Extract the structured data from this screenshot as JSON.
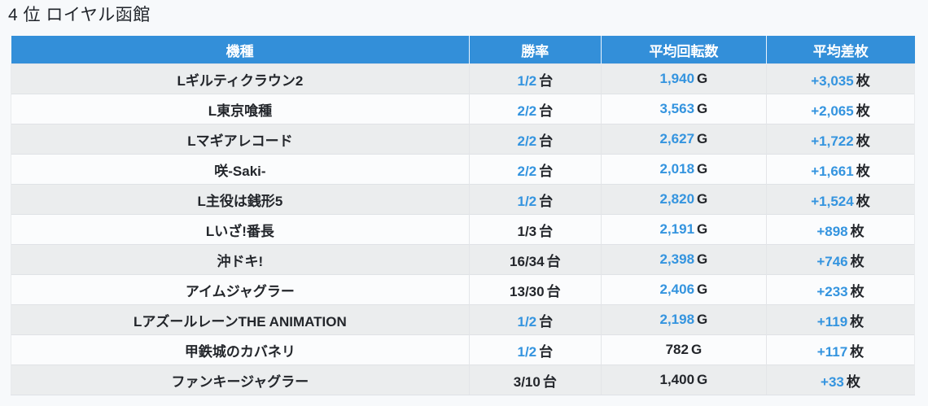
{
  "page": {
    "title": "4 位 ロイヤル函館"
  },
  "colors": {
    "header_bg": "#338fd9",
    "accent_text": "#3494df",
    "dark_text": "#23262b",
    "row_alt_bg": "#ebedee",
    "row_bg": "#fbfcfd",
    "page_bg": "#f7f9fb"
  },
  "chart_data": {
    "type": "table",
    "title": "4 位 ロイヤル函館",
    "columns": [
      "機種",
      "勝率",
      "平均回転数",
      "平均差枚"
    ],
    "units": {
      "win_rate": "台",
      "avg_spins": "G",
      "avg_diff": "枚"
    },
    "rows": [
      {
        "machine": "Lギルティクラウン2",
        "win_rate": "1/2",
        "win_rate_highlight": true,
        "avg_spins": "1,940",
        "avg_spins_highlight": true,
        "avg_diff": "+3,035",
        "avg_diff_highlight": true
      },
      {
        "machine": "L東京喰種",
        "win_rate": "2/2",
        "win_rate_highlight": true,
        "avg_spins": "3,563",
        "avg_spins_highlight": true,
        "avg_diff": "+2,065",
        "avg_diff_highlight": true
      },
      {
        "machine": "Lマギアレコード",
        "win_rate": "2/2",
        "win_rate_highlight": true,
        "avg_spins": "2,627",
        "avg_spins_highlight": true,
        "avg_diff": "+1,722",
        "avg_diff_highlight": true
      },
      {
        "machine": "咲-Saki-",
        "win_rate": "2/2",
        "win_rate_highlight": true,
        "avg_spins": "2,018",
        "avg_spins_highlight": true,
        "avg_diff": "+1,661",
        "avg_diff_highlight": true
      },
      {
        "machine": "L主役は銭形5",
        "win_rate": "1/2",
        "win_rate_highlight": true,
        "avg_spins": "2,820",
        "avg_spins_highlight": true,
        "avg_diff": "+1,524",
        "avg_diff_highlight": true
      },
      {
        "machine": "Lいざ!番長",
        "win_rate": "1/3",
        "win_rate_highlight": false,
        "avg_spins": "2,191",
        "avg_spins_highlight": true,
        "avg_diff": "+898",
        "avg_diff_highlight": true
      },
      {
        "machine": "沖ドキ!",
        "win_rate": "16/34",
        "win_rate_highlight": false,
        "avg_spins": "2,398",
        "avg_spins_highlight": true,
        "avg_diff": "+746",
        "avg_diff_highlight": true
      },
      {
        "machine": "アイムジャグラー",
        "win_rate": "13/30",
        "win_rate_highlight": false,
        "avg_spins": "2,406",
        "avg_spins_highlight": true,
        "avg_diff": "+233",
        "avg_diff_highlight": true
      },
      {
        "machine": "LアズールレーンTHE ANIMATION",
        "win_rate": "1/2",
        "win_rate_highlight": true,
        "avg_spins": "2,198",
        "avg_spins_highlight": true,
        "avg_diff": "+119",
        "avg_diff_highlight": true
      },
      {
        "machine": "甲鉄城のカバネリ",
        "win_rate": "1/2",
        "win_rate_highlight": true,
        "avg_spins": "782",
        "avg_spins_highlight": false,
        "avg_diff": "+117",
        "avg_diff_highlight": true
      },
      {
        "machine": "ファンキージャグラー",
        "win_rate": "3/10",
        "win_rate_highlight": false,
        "avg_spins": "1,400",
        "avg_spins_highlight": false,
        "avg_diff": "+33",
        "avg_diff_highlight": true
      }
    ]
  }
}
